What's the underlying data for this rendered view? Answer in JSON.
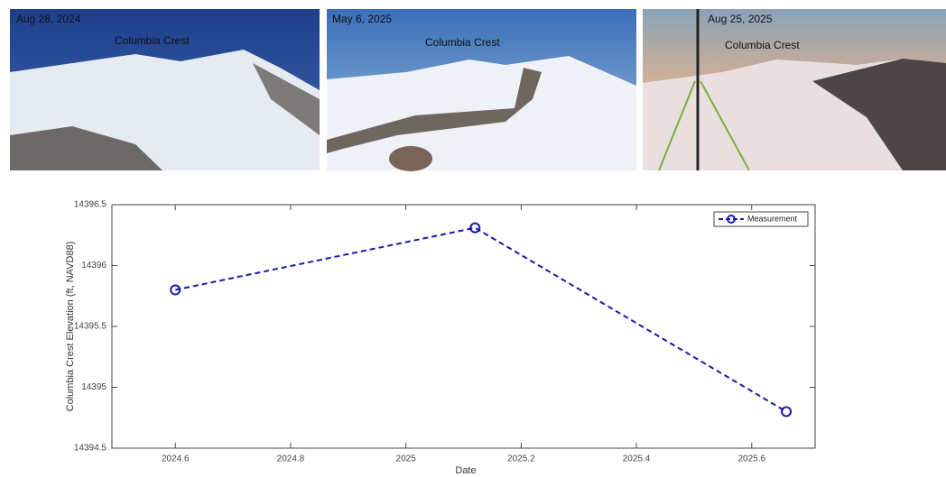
{
  "photos": [
    {
      "date": "Aug 28, 2024",
      "label": "Columbia Crest"
    },
    {
      "date": "May 6, 2025",
      "label": "Columbia Crest"
    },
    {
      "date": "Aug 25, 2025",
      "label": "Columbia Crest"
    }
  ],
  "chart_data": {
    "type": "line",
    "x": [
      2024.6,
      2025.12,
      2025.66
    ],
    "series": [
      {
        "name": "Measurement",
        "color": "#1a1aa6",
        "values": [
          14395.8,
          14396.31,
          14394.8
        ]
      }
    ],
    "xlabel": "Date",
    "ylabel": "Columbia Crest Elevation (ft, NAVD88)",
    "xlim": [
      2024.49,
      2025.71
    ],
    "ylim": [
      14394.5,
      14396.5
    ],
    "xticks": [
      2024.6,
      2024.8,
      2025,
      2025.2,
      2025.4,
      2025.6
    ],
    "yticks": [
      14394.5,
      14395,
      14395.5,
      14396,
      14396.5
    ],
    "grid": false,
    "legend": "northeast"
  }
}
